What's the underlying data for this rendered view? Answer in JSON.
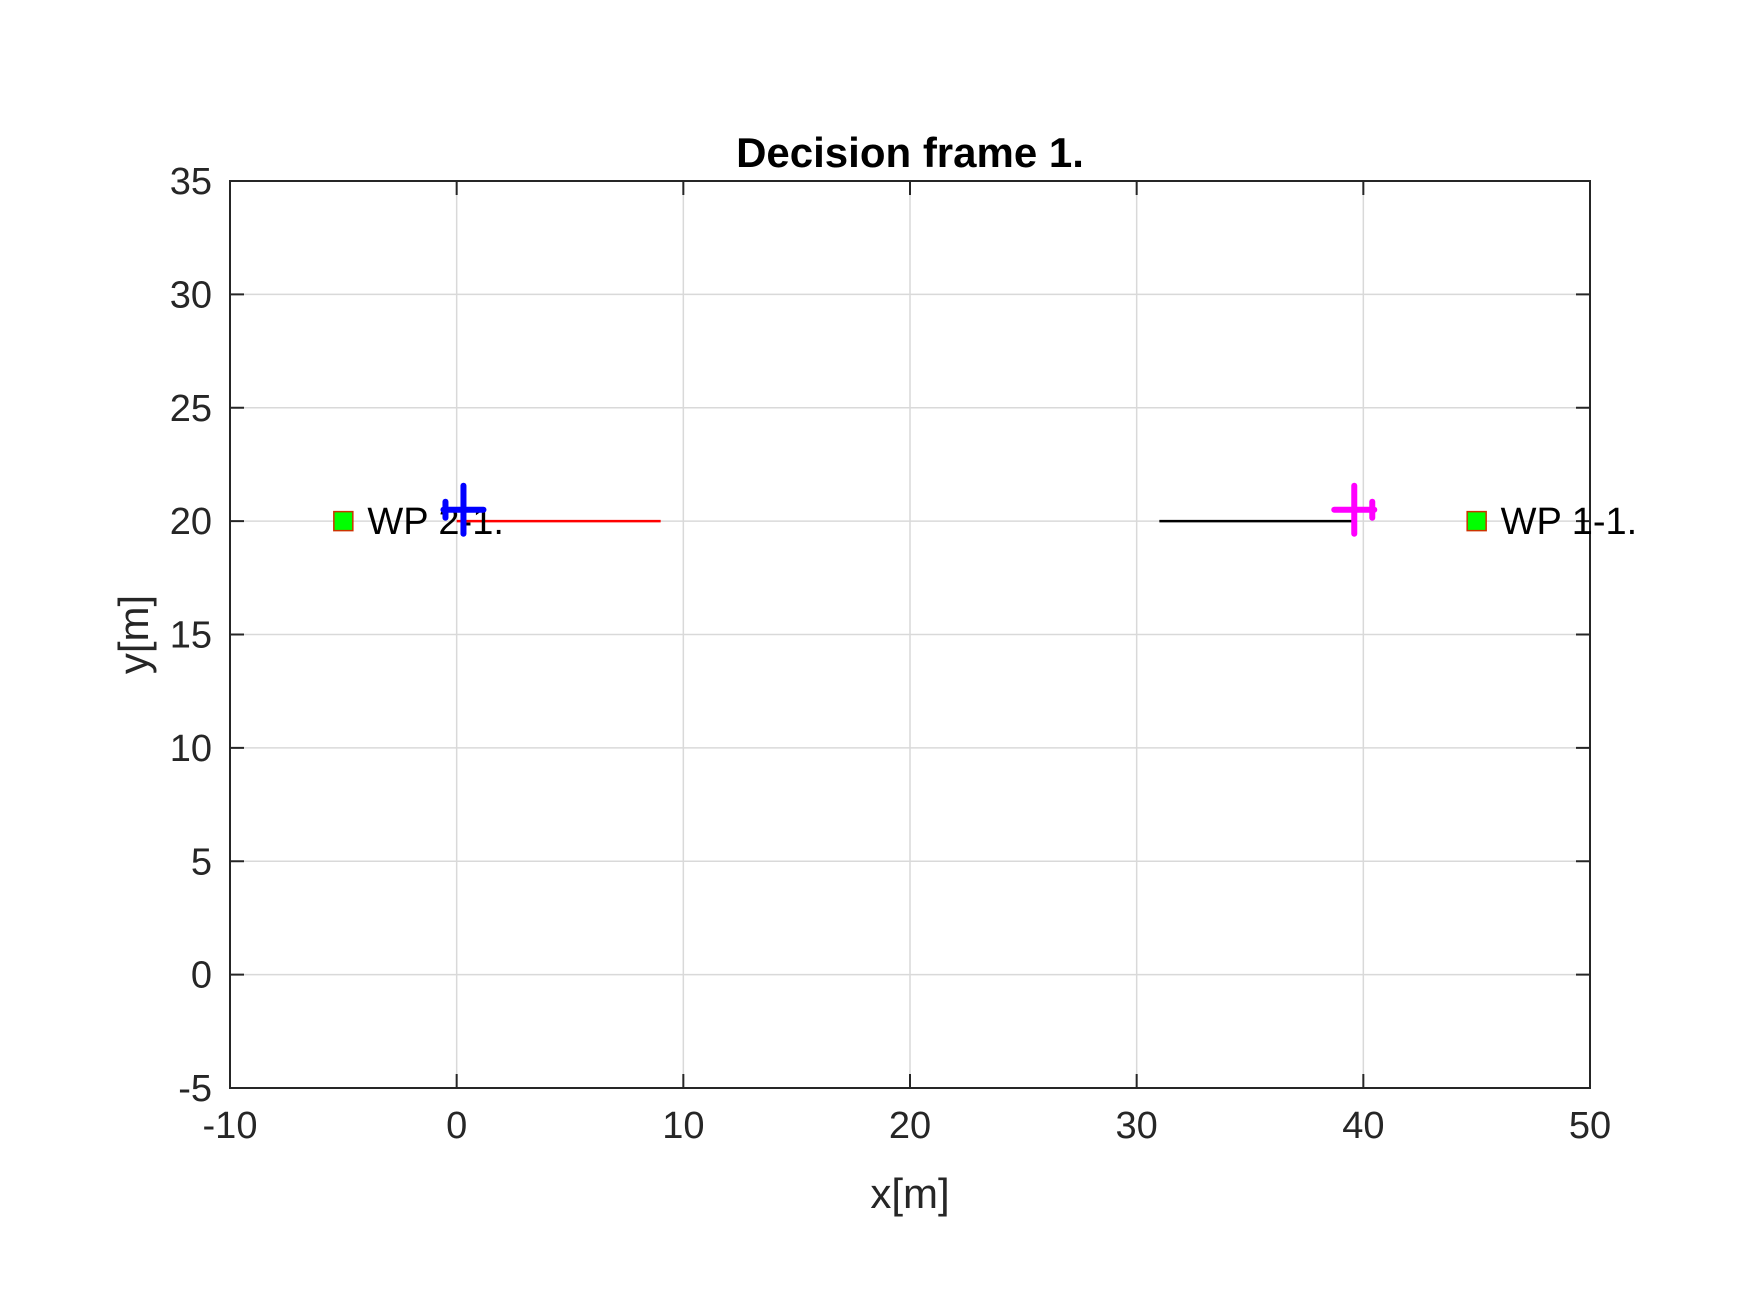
{
  "chart_data": {
    "type": "scatter",
    "title": "Decision frame 1.",
    "xlabel": "x[m]",
    "ylabel": "y[m]",
    "xlim": [
      -10,
      50
    ],
    "ylim": [
      -5,
      35
    ],
    "xticks": [
      -10,
      0,
      10,
      20,
      30,
      40,
      50
    ],
    "yticks": [
      -5,
      0,
      5,
      10,
      15,
      20,
      25,
      30,
      35
    ],
    "xtick_labels": [
      "-10",
      "0",
      "10",
      "20",
      "30",
      "40",
      "50"
    ],
    "ytick_labels": [
      "-5",
      "0",
      "5",
      "10",
      "15",
      "20",
      "25",
      "30",
      "35"
    ],
    "grid": true,
    "waypoints": [
      {
        "label": "WP 2-1.",
        "x": -5,
        "y": 20,
        "color": "#00ff00",
        "edge_color": "#cc3300"
      },
      {
        "label": "WP 1-1.",
        "x": 45,
        "y": 20,
        "color": "#00ff00",
        "edge_color": "#cc3300"
      }
    ],
    "paths": [
      {
        "color": "#ff0000",
        "x": [
          0,
          9
        ],
        "y": [
          20,
          20
        ]
      },
      {
        "color": "#000000",
        "x": [
          31,
          39.6
        ],
        "y": [
          20,
          20
        ]
      }
    ],
    "aircraft": [
      {
        "x": 0.3,
        "y": 20.5,
        "heading": "east",
        "color": "#0000ff"
      },
      {
        "x": 39.6,
        "y": 20.5,
        "heading": "west",
        "color": "#ff00ff"
      }
    ]
  }
}
